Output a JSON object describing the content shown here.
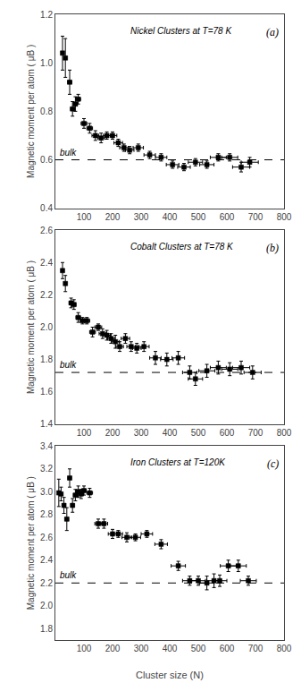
{
  "chart_data": [
    {
      "type": "scatter",
      "title": "Nickel Clusters at T=78 K",
      "panel_label": "(a)",
      "y_label": "Magnetic moment per atom ( μB )",
      "xlim": [
        0,
        800
      ],
      "xticks": [
        100,
        200,
        300,
        400,
        500,
        600,
        700,
        800
      ],
      "ylim": [
        0.4,
        1.2
      ],
      "yticks": [
        0.4,
        0.6,
        0.8,
        {
          "value": 1.0,
          "label": "1.0"
        },
        1.2
      ],
      "grid": false,
      "marker": "square",
      "color": "black",
      "reference_line": {
        "y": 0.6,
        "label": "bulk",
        "line_style": "dashed"
      },
      "x": [
        25,
        35,
        50,
        60,
        70,
        80,
        100,
        120,
        140,
        160,
        180,
        200,
        220,
        240,
        260,
        290,
        330,
        370,
        410,
        450,
        490,
        530,
        570,
        610,
        650,
        680
      ],
      "values": [
        1.04,
        1.02,
        0.92,
        0.81,
        0.83,
        0.85,
        0.75,
        0.73,
        0.7,
        0.69,
        0.7,
        0.7,
        0.67,
        0.65,
        0.64,
        0.65,
        0.62,
        0.61,
        0.58,
        0.57,
        0.59,
        0.58,
        0.61,
        0.61,
        0.57,
        0.59
      ],
      "xerr": [
        5,
        5,
        7,
        7,
        7,
        8,
        10,
        10,
        12,
        12,
        12,
        15,
        15,
        15,
        15,
        18,
        20,
        20,
        22,
        22,
        25,
        25,
        28,
        28,
        30,
        30
      ],
      "yerr": [
        0.07,
        0.08,
        0.05,
        0.03,
        0.03,
        0.02,
        0.02,
        0.02,
        0.02,
        0.02,
        0.015,
        0.015,
        0.015,
        0.015,
        0.015,
        0.015,
        0.015,
        0.015,
        0.015,
        0.015,
        0.015,
        0.015,
        0.015,
        0.015,
        0.02,
        0.02
      ]
    },
    {
      "type": "scatter",
      "title": "Cobalt Clusters at T=78 K",
      "panel_label": "(b)",
      "y_label": "Magnetic moment per atom ( μB )",
      "xlim": [
        0,
        800
      ],
      "xticks": [
        100,
        200,
        300,
        400,
        500,
        600,
        700,
        800
      ],
      "ylim": [
        1.4,
        2.6
      ],
      "yticks": [
        1.4,
        1.6,
        1.8,
        {
          "value": 2.0,
          "label": "2.0"
        },
        2.2,
        2.4,
        2.6
      ],
      "grid": false,
      "marker": "square",
      "color": "black",
      "reference_line": {
        "y": 1.72,
        "label": "bulk",
        "line_style": "dashed"
      },
      "x": [
        25,
        35,
        55,
        65,
        80,
        95,
        110,
        130,
        150,
        165,
        180,
        195,
        210,
        225,
        245,
        265,
        285,
        310,
        350,
        390,
        430,
        470,
        490,
        530,
        570,
        610,
        650,
        690
      ],
      "values": [
        2.35,
        2.27,
        2.15,
        2.14,
        2.06,
        2.04,
        2.04,
        1.97,
        2.0,
        1.96,
        1.95,
        1.93,
        1.91,
        1.88,
        1.93,
        1.88,
        1.87,
        1.88,
        1.81,
        1.8,
        1.81,
        1.72,
        1.68,
        1.73,
        1.75,
        1.74,
        1.75,
        1.72
      ],
      "xerr": [
        5,
        5,
        7,
        7,
        8,
        8,
        10,
        10,
        12,
        12,
        12,
        12,
        13,
        13,
        15,
        15,
        15,
        18,
        20,
        22,
        22,
        25,
        25,
        28,
        28,
        28,
        30,
        30
      ],
      "yerr": [
        0.05,
        0.05,
        0.03,
        0.03,
        0.03,
        0.02,
        0.02,
        0.03,
        0.02,
        0.03,
        0.03,
        0.03,
        0.04,
        0.03,
        0.03,
        0.03,
        0.03,
        0.03,
        0.04,
        0.04,
        0.04,
        0.04,
        0.04,
        0.04,
        0.04,
        0.04,
        0.04,
        0.04
      ]
    },
    {
      "type": "scatter",
      "title": "Iron Clusters at T=120K",
      "panel_label": "(c)",
      "y_label": "Magnetic moment per atom ( μB )",
      "x_label": "Cluster size (N)",
      "xlim": [
        0,
        800
      ],
      "xticks": [
        100,
        200,
        300,
        400,
        500,
        600,
        700,
        800
      ],
      "ylim": [
        1.7,
        3.4
      ],
      "yticks": [
        1.8,
        {
          "value": 2.0,
          "label": "2.0"
        },
        2.2,
        2.4,
        2.6,
        2.8,
        {
          "value": 3.0,
          "label": "3.0"
        },
        3.2,
        3.4
      ],
      "grid": false,
      "marker": "square",
      "color": "black",
      "reference_line": {
        "y": 2.2,
        "label": "bulk",
        "line_style": "dashed"
      },
      "x": [
        12,
        20,
        30,
        40,
        50,
        60,
        70,
        80,
        90,
        100,
        120,
        150,
        170,
        200,
        220,
        250,
        280,
        320,
        370,
        430,
        470,
        500,
        530,
        555,
        575,
        605,
        640,
        675
      ],
      "values": [
        2.99,
        2.98,
        2.88,
        2.76,
        3.12,
        2.88,
        2.97,
        3.0,
        2.98,
        3.01,
        2.99,
        2.72,
        2.72,
        2.63,
        2.63,
        2.6,
        2.6,
        2.63,
        2.54,
        2.35,
        2.22,
        2.22,
        2.2,
        2.22,
        2.22,
        2.35,
        2.35,
        2.22
      ],
      "xerr": [
        3,
        4,
        5,
        6,
        6,
        6,
        7,
        8,
        8,
        8,
        10,
        12,
        13,
        15,
        15,
        17,
        18,
        20,
        22,
        25,
        25,
        25,
        25,
        25,
        25,
        28,
        28,
        28
      ],
      "yerr": [
        0.12,
        0.06,
        0.07,
        0.1,
        0.08,
        0.06,
        0.05,
        0.05,
        0.04,
        0.04,
        0.04,
        0.04,
        0.04,
        0.04,
        0.03,
        0.04,
        0.03,
        0.03,
        0.04,
        0.04,
        0.04,
        0.04,
        0.06,
        0.06,
        0.05,
        0.05,
        0.05,
        0.04
      ]
    }
  ]
}
